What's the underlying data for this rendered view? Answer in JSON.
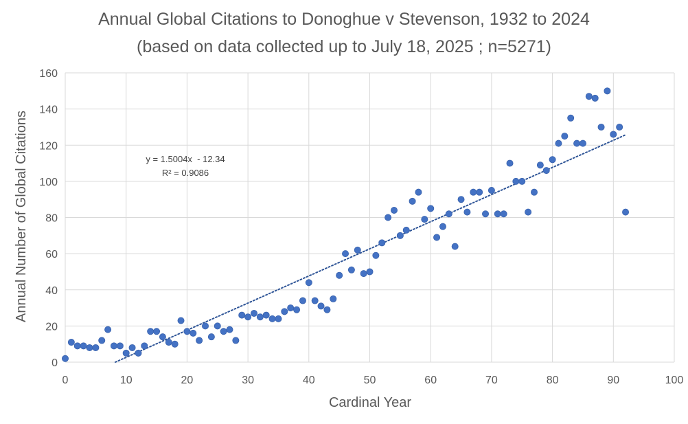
{
  "chart_data": {
    "type": "scatter",
    "title": "Annual Global Citations to Donoghue v Stevenson, 1932 to 2024",
    "subtitle": "(based on data collected up to July 18, 2025 ; n=5271)",
    "xlabel": "Cardinal Year",
    "ylabel": "Annual Number of Global Citations",
    "xlim": [
      0,
      100
    ],
    "ylim": [
      0,
      160
    ],
    "xticks": [
      0,
      10,
      20,
      30,
      40,
      50,
      60,
      70,
      80,
      90,
      100
    ],
    "yticks": [
      0,
      20,
      40,
      60,
      80,
      100,
      120,
      140,
      160
    ],
    "grid": true,
    "legend": "none",
    "marker_color": "#4472C4",
    "trendline_color": "#2F5597",
    "series": [
      {
        "name": "Annual Global Citations",
        "x": [
          0,
          1,
          2,
          3,
          4,
          5,
          6,
          7,
          8,
          9,
          10,
          11,
          12,
          13,
          14,
          15,
          16,
          17,
          18,
          19,
          20,
          21,
          22,
          23,
          24,
          25,
          26,
          27,
          28,
          29,
          30,
          31,
          32,
          33,
          34,
          35,
          36,
          37,
          38,
          39,
          40,
          41,
          42,
          43,
          44,
          45,
          46,
          47,
          48,
          49,
          50,
          51,
          52,
          53,
          54,
          55,
          56,
          57,
          58,
          59,
          60,
          61,
          62,
          63,
          64,
          65,
          66,
          67,
          68,
          69,
          70,
          71,
          72,
          73,
          74,
          75,
          76,
          77,
          78,
          79,
          80,
          81,
          82,
          83,
          84,
          85,
          86,
          87,
          88,
          89,
          90,
          91,
          92
        ],
        "y": [
          2,
          11,
          9,
          9,
          8,
          8,
          12,
          18,
          9,
          9,
          5,
          8,
          5,
          9,
          17,
          17,
          14,
          11,
          10,
          23,
          17,
          16,
          12,
          20,
          14,
          20,
          17,
          18,
          12,
          26,
          25,
          27,
          25,
          26,
          24,
          24,
          28,
          30,
          29,
          34,
          44,
          34,
          31,
          29,
          35,
          48,
          60,
          51,
          62,
          49,
          50,
          59,
          66,
          80,
          84,
          70,
          73,
          89,
          94,
          79,
          85,
          69,
          75,
          82,
          64,
          90,
          83,
          94,
          94,
          82,
          95,
          82,
          82,
          110,
          100,
          100,
          83,
          94,
          109,
          106,
          112,
          121,
          125,
          135,
          121,
          121,
          147,
          146,
          130,
          150,
          126,
          130,
          83
        ]
      }
    ],
    "trendline": {
      "type": "linear",
      "slope": 1.5004,
      "intercept": -12.34,
      "x_range": [
        8.22,
        92
      ],
      "equation_label": "y = 1.5004x  - 12.34",
      "r2_label": "R² = 0.9086"
    }
  }
}
